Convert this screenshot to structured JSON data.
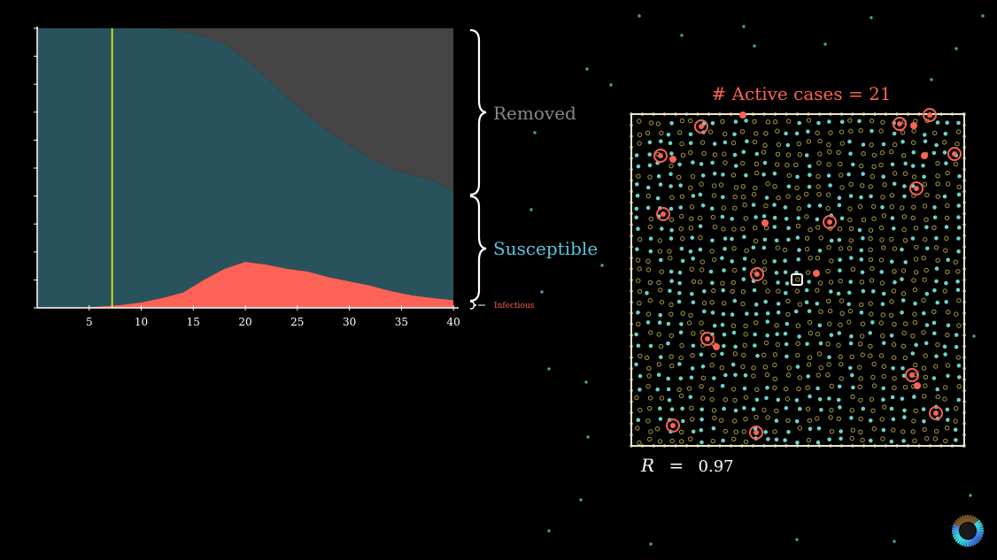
{
  "chart_data": {
    "type": "area",
    "stacking": "stacked",
    "x": [
      0,
      2,
      4,
      6,
      8,
      10,
      12,
      14,
      16,
      18,
      20,
      22,
      24,
      26,
      28,
      30,
      32,
      34,
      36,
      38,
      40
    ],
    "xlim": [
      0,
      40.5
    ],
    "ylim": [
      0,
      1
    ],
    "x_ticks": [
      5,
      10,
      15,
      20,
      25,
      30,
      35,
      40
    ],
    "series": [
      {
        "name": "Infectious",
        "color": "#fc6255",
        "values": [
          0.0,
          0.0,
          0.0,
          0.005,
          0.01,
          0.02,
          0.035,
          0.055,
          0.1,
          0.14,
          0.165,
          0.155,
          0.14,
          0.13,
          0.11,
          0.095,
          0.08,
          0.06,
          0.045,
          0.035,
          0.028
        ]
      },
      {
        "name": "Susceptible",
        "color": "#29535c",
        "values": [
          1.0,
          1.0,
          1.0,
          0.995,
          0.99,
          0.98,
          0.965,
          0.935,
          0.87,
          0.805,
          0.725,
          0.67,
          0.61,
          0.56,
          0.52,
          0.485,
          0.455,
          0.435,
          0.43,
          0.42,
          0.39
        ]
      },
      {
        "name": "Removed",
        "color": "#444444",
        "values": [
          0.0,
          0.0,
          0.0,
          0.0,
          0.0,
          0.0,
          0.0,
          0.01,
          0.03,
          0.055,
          0.11,
          0.175,
          0.25,
          0.31,
          0.37,
          0.42,
          0.465,
          0.505,
          0.525,
          0.545,
          0.582
        ]
      }
    ],
    "current_time_marker": 7.2,
    "grid": false,
    "legend_placement": "right"
  },
  "legend": {
    "removed": "Removed",
    "susceptible": "Susceptible",
    "infectious": "Infectious"
  },
  "simulation": {
    "title": "# Active cases = 21",
    "r_symbol": "R",
    "r_equals": "=",
    "r_value": "0.97"
  },
  "colors": {
    "infectious": "#fc6255",
    "susceptible": "#29535c",
    "removed": "#444444",
    "removed_label": "#888888",
    "susceptible_label": "#58c4dd",
    "time_marker": "#ffff00",
    "dot_susceptible": "#6ad3c5",
    "dot_removed": "#a59c3a",
    "dot_infectious": "#fc6255",
    "star": "#58c4dd"
  },
  "icons": {
    "logo": "3b1b-pi-logo-icon"
  }
}
